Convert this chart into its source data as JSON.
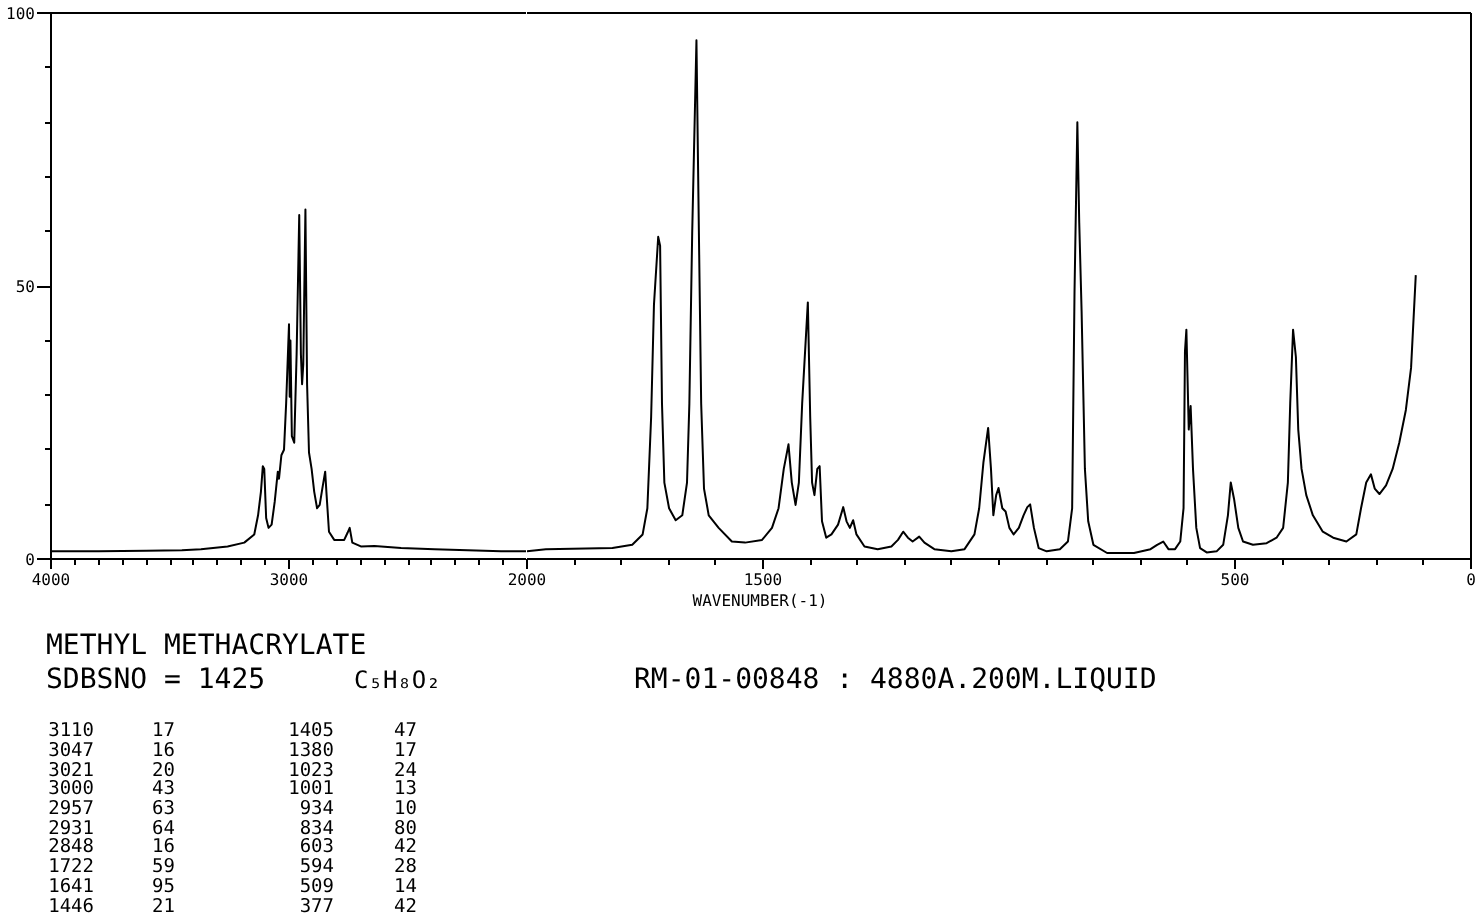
{
  "chart_data": [
    {
      "type": "line",
      "xlim": [
        4000,
        2000
      ],
      "ylim": [
        0,
        100
      ],
      "xticks": [
        4000,
        {
          "value": 3900,
          "label": null
        },
        {
          "value": 3800,
          "label": null
        },
        {
          "value": 3700,
          "label": null
        },
        {
          "value": 3600,
          "label": null
        },
        {
          "value": 3500,
          "label": null
        },
        {
          "value": 3400,
          "label": null
        },
        {
          "value": 3300,
          "label": null
        },
        {
          "value": 3200,
          "label": null
        },
        {
          "value": 3100,
          "label": null
        },
        3000,
        {
          "value": 2900,
          "label": null
        },
        {
          "value": 2800,
          "label": null
        },
        {
          "value": 2700,
          "label": null
        },
        {
          "value": 2600,
          "label": null
        },
        {
          "value": 2500,
          "label": null
        },
        {
          "value": 2400,
          "label": null
        },
        {
          "value": 2300,
          "label": null
        },
        {
          "value": 2200,
          "label": null
        },
        {
          "value": 2100,
          "label": null
        }
      ],
      "yticks": [
        0,
        {
          "value": 10,
          "label": null
        },
        {
          "value": 20,
          "label": null
        },
        {
          "value": 30,
          "label": null
        },
        {
          "value": 40,
          "label": null
        },
        50,
        {
          "value": 60,
          "label": null
        },
        {
          "value": 70,
          "label": null
        },
        {
          "value": 80,
          "label": null
        },
        {
          "value": 90,
          "label": null
        },
        100
      ],
      "series": [
        {
          "color": "#000000",
          "x": [
            4000,
            3800,
            3600,
            3450,
            3370,
            3258,
            3188,
            3146,
            3130,
            3118,
            3110,
            3104,
            3096,
            3086,
            3073,
            3060,
            3047,
            3042,
            3032,
            3021,
            3012,
            3000,
            2997,
            2994,
            2988,
            2978,
            2968,
            2957,
            2950,
            2945,
            2940,
            2931,
            2924,
            2916,
            2905,
            2894,
            2882,
            2871,
            2860,
            2848,
            2842,
            2832,
            2810,
            2768,
            2754,
            2745,
            2734,
            2698,
            2641,
            2529,
            2389,
            2249,
            2109,
            2000
          ],
          "values": [
            1.4,
            1.4,
            1.5,
            1.6,
            1.8,
            2.3,
            3.0,
            4.5,
            8,
            12.3,
            17,
            16.5,
            7.5,
            5.7,
            6.3,
            10.5,
            16,
            14.7,
            19,
            20,
            28.5,
            43,
            29.7,
            40,
            22.5,
            21.3,
            37.5,
            63,
            37.5,
            32,
            35.7,
            64,
            32,
            19.5,
            16.5,
            12.3,
            9.3,
            9.9,
            12.9,
            16,
            11.7,
            5,
            3.5,
            3.5,
            4.8,
            5.7,
            3.0,
            2.3,
            2.4,
            2.0,
            1.8,
            1.6,
            1.4,
            1.4
          ]
        }
      ]
    },
    {
      "type": "line",
      "xlim": [
        2000,
        0
      ],
      "ylim": [
        0,
        100
      ],
      "tick_labels": "x",
      "xlabel": "WAVENUMBER(-1)",
      "xticks": [
        2000,
        {
          "value": 1900,
          "label": null
        },
        {
          "value": 1800,
          "label": null
        },
        {
          "value": 1700,
          "label": null
        },
        {
          "value": 1600,
          "label": null
        },
        1500,
        {
          "value": 1400,
          "label": null
        },
        {
          "value": 1300,
          "label": null
        },
        {
          "value": 1200,
          "label": null
        },
        {
          "value": 1100,
          "label": null
        },
        {
          "value": 1000,
          "label": null
        },
        {
          "value": 900,
          "label": null
        },
        {
          "value": 800,
          "label": null
        },
        {
          "value": 700,
          "label": null
        },
        {
          "value": 600,
          "label": null
        },
        500,
        {
          "value": 400,
          "label": null
        },
        {
          "value": 300,
          "label": null
        },
        {
          "value": 200,
          "label": null
        },
        {
          "value": 100,
          "label": null
        },
        0
      ],
      "series": [
        {
          "color": "#000000",
          "x": [
            2000,
            1960,
            1819,
            1777,
            1755,
            1745,
            1737,
            1731,
            1722,
            1718,
            1714,
            1709,
            1699,
            1685,
            1671,
            1661,
            1656,
            1650,
            1641,
            1636,
            1631,
            1625,
            1615,
            1594,
            1566,
            1538,
            1502,
            1481,
            1467,
            1456,
            1446,
            1439,
            1431,
            1424,
            1417,
            1405,
            1400,
            1396,
            1391,
            1385,
            1380,
            1375,
            1366,
            1355,
            1341,
            1330,
            1323,
            1316,
            1309,
            1302,
            1285,
            1257,
            1228,
            1214,
            1203,
            1193,
            1183,
            1169,
            1158,
            1137,
            1101,
            1073,
            1052,
            1042,
            1033,
            1023,
            1017,
            1012,
            1006,
            1001,
            993,
            986,
            978,
            969,
            958,
            948,
            940,
            934,
            926,
            916,
            899,
            871,
            854,
            845,
            840,
            834,
            830,
            825,
            818,
            811,
            800,
            771,
            714,
            679,
            665,
            652,
            641,
            627,
            616,
            609,
            606,
            603,
            598,
            594,
            589,
            582,
            574,
            560,
            539,
            525,
            515,
            509,
            502,
            493,
            483,
            462,
            433,
            412,
            398,
            388,
            383,
            377,
            371,
            366,
            359,
            349,
            335,
            314,
            292,
            264,
            243,
            233,
            222,
            212,
            204,
            194,
            180,
            166,
            152,
            138,
            127,
            117
          ],
          "values": [
            1.4,
            1.8,
            2.0,
            2.6,
            4.5,
            9.3,
            26,
            46.6,
            59,
            57.4,
            28.5,
            14,
            9.3,
            7.1,
            8,
            14,
            28.5,
            59.8,
            95,
            61,
            28.5,
            12.9,
            8,
            5.7,
            3.2,
            3.0,
            3.5,
            5.7,
            9.3,
            16.5,
            21,
            14,
            9.9,
            14,
            28.5,
            47,
            26,
            14,
            11.7,
            16.5,
            17,
            6.9,
            3.9,
            4.5,
            6.3,
            9.5,
            6.9,
            5.7,
            7.1,
            4.5,
            2.3,
            1.8,
            2.3,
            3.5,
            5,
            3.9,
            3.2,
            4.1,
            3.0,
            1.8,
            1.4,
            1.8,
            4.5,
            9.3,
            17.7,
            24,
            16.5,
            8,
            11.7,
            13,
            9.3,
            8.7,
            5.7,
            4.5,
            5.7,
            8,
            9.5,
            10,
            5.7,
            2.0,
            1.4,
            1.8,
            3.2,
            9.3,
            49,
            80,
            61.6,
            45.4,
            16.5,
            6.9,
            2.6,
            1.1,
            1.1,
            1.8,
            2.6,
            3.2,
            1.8,
            1.8,
            3.2,
            9.3,
            38,
            42,
            23.7,
            28,
            16.5,
            5.7,
            2.0,
            1.2,
            1.4,
            2.6,
            8,
            14,
            11,
            5.7,
            3.2,
            2.6,
            2.9,
            3.9,
            5.7,
            14,
            28.5,
            42,
            37,
            23.7,
            16.5,
            11.7,
            8,
            5,
            3.9,
            3.2,
            4.5,
            9.3,
            14,
            15.5,
            12.9,
            11.9,
            13.5,
            16.5,
            21.3,
            27.3,
            35,
            52
          ]
        }
      ]
    },
    {
      "type": "other",
      "title": "METHYL METHACRYLATE",
      "annotations": [
        "SDBSNO = 1425",
        "C₅H₈O₂",
        "RM-01-00848 : 4880A.200M.LIQUID",
        "3110 17",
        "3047 16",
        "3021 20",
        "3000 43",
        "2957 63",
        "2931 64",
        "2848 16",
        "1722 59",
        "1641 95",
        "1446 21",
        "1405 47",
        "1380 17",
        "1023 24",
        "1001 13",
        "934 10",
        "834 80",
        "603 42",
        "594 28",
        "509 14",
        "377 42"
      ]
    }
  ]
}
